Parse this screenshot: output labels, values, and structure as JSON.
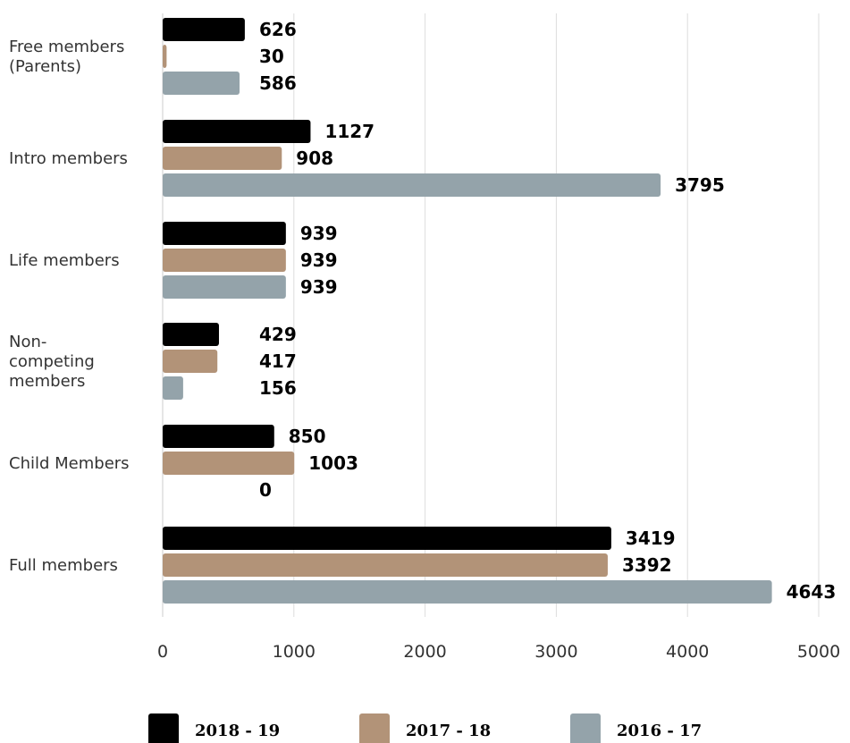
{
  "chart_data": {
    "type": "bar",
    "orientation": "horizontal",
    "categories": [
      [
        "Free members",
        "(Parents)"
      ],
      [
        "Intro members"
      ],
      [
        "Life members"
      ],
      [
        "Non-",
        "competing",
        "members"
      ],
      [
        "Child Members"
      ],
      [
        "Full members"
      ]
    ],
    "series": [
      {
        "name": "2018 - 19",
        "color": "#000000",
        "values": [
          626,
          1127,
          939,
          429,
          850,
          3419
        ]
      },
      {
        "name": "2017 - 18",
        "color": "#b29378",
        "values": [
          30,
          908,
          939,
          417,
          1003,
          3392
        ]
      },
      {
        "name": "2016 - 17",
        "color": "#94a3aa",
        "values": [
          586,
          3795,
          939,
          156,
          0,
          4643
        ]
      }
    ],
    "xlim": [
      0,
      5000
    ],
    "xticks": [
      "0",
      "1000",
      "2000",
      "3000",
      "4000",
      "5000"
    ],
    "grid": "vertical",
    "legend_position": "bottom"
  }
}
